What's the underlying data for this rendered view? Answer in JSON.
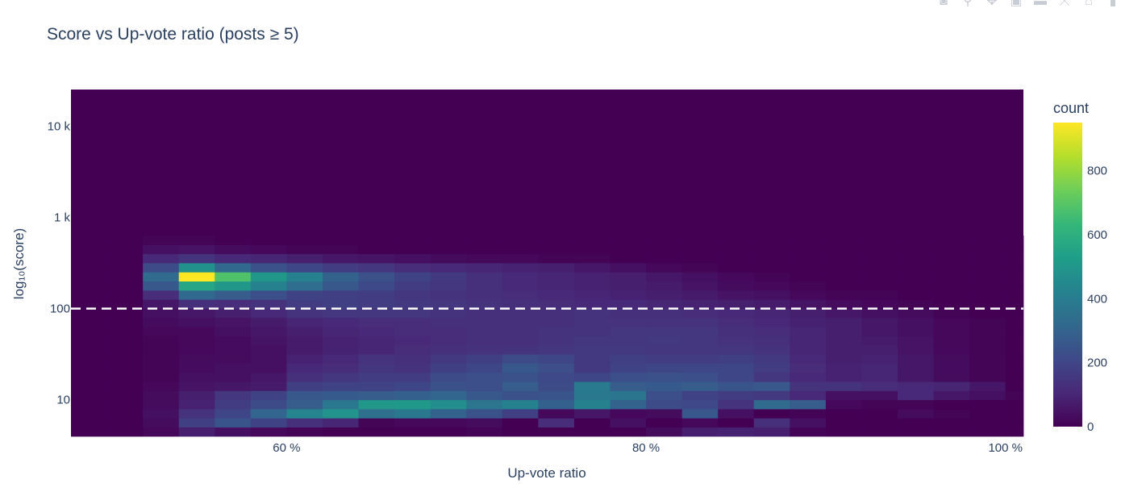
{
  "modebar": {
    "buttons": [
      {
        "icon": "camera-icon",
        "glyph": "◙"
      },
      {
        "icon": "zoom-icon",
        "glyph": "⚲"
      },
      {
        "icon": "pan-icon",
        "glyph": "✥"
      },
      {
        "icon": "zoom-in-icon",
        "glyph": "▣"
      },
      {
        "icon": "zoom-out-icon",
        "glyph": "▬"
      },
      {
        "icon": "autoscale-icon",
        "glyph": "⤧"
      },
      {
        "icon": "home-icon",
        "glyph": "⌂"
      },
      {
        "icon": "plotly-logo-icon",
        "glyph": "▮"
      }
    ]
  },
  "chart_data": {
    "type": "heatmap",
    "title": "Score vs Up-vote ratio (posts ≥ 5)",
    "xlabel": "Up-vote ratio",
    "ylabel": "log₁₀(score)",
    "x_ticks": [
      {
        "value": 0.6,
        "label": "60 %"
      },
      {
        "value": 0.8,
        "label": "80 %"
      },
      {
        "value": 1.0,
        "label": "100 %"
      }
    ],
    "y_ticks": [
      {
        "value": 10,
        "label": "10"
      },
      {
        "value": 100,
        "label": "100"
      },
      {
        "value": 1000,
        "label": "1 k"
      },
      {
        "value": 10000,
        "label": "10 k"
      }
    ],
    "xlim": [
      0.48,
      1.01
    ],
    "ylog_range": [
      0.6,
      4.4
    ],
    "y_scale": "log",
    "reference_line": {
      "y": 100,
      "style": "dashed",
      "color": "#ffffff"
    },
    "colorbar": {
      "title": "count",
      "ticks": [
        0,
        200,
        400,
        600,
        800
      ],
      "max": 950,
      "colorscale": "Viridis"
    },
    "x_bin_start": 0.48,
    "x_bin_width": 0.02,
    "y_bin_start_log": 0.6,
    "y_bin_width_log": 0.1,
    "counts": [
      [
        0,
        0,
        20,
        80,
        40,
        20,
        10,
        0,
        0,
        0,
        0,
        10,
        0,
        0,
        0,
        0,
        30,
        80,
        90,
        80,
        10,
        0,
        0,
        0,
        0,
        0,
        0
      ],
      [
        0,
        0,
        30,
        180,
        250,
        190,
        130,
        100,
        10,
        20,
        20,
        30,
        0,
        120,
        0,
        40,
        0,
        20,
        0,
        130,
        40,
        0,
        0,
        0,
        0,
        0,
        0
      ],
      [
        0,
        0,
        40,
        140,
        200,
        310,
        430,
        490,
        350,
        380,
        300,
        240,
        180,
        20,
        60,
        20,
        30,
        260,
        40,
        0,
        10,
        0,
        0,
        30,
        10,
        0,
        0
      ],
      [
        0,
        0,
        30,
        90,
        170,
        220,
        280,
        380,
        500,
        510,
        470,
        370,
        420,
        290,
        420,
        300,
        220,
        210,
        140,
        330,
        280,
        20,
        10,
        10,
        0,
        0,
        0
      ],
      [
        0,
        0,
        30,
        80,
        150,
        190,
        260,
        270,
        280,
        290,
        310,
        260,
        240,
        250,
        380,
        370,
        230,
        190,
        170,
        160,
        110,
        40,
        40,
        110,
        60,
        40,
        10
      ],
      [
        0,
        0,
        20,
        50,
        60,
        70,
        180,
        190,
        190,
        200,
        240,
        230,
        280,
        220,
        390,
        280,
        270,
        280,
        250,
        260,
        140,
        140,
        120,
        110,
        100,
        60,
        0
      ],
      [
        0,
        0,
        10,
        40,
        40,
        60,
        130,
        150,
        170,
        170,
        220,
        230,
        240,
        210,
        200,
        230,
        240,
        230,
        200,
        150,
        110,
        90,
        100,
        60,
        30,
        10,
        0
      ],
      [
        0,
        0,
        10,
        30,
        40,
        40,
        110,
        120,
        150,
        140,
        180,
        200,
        260,
        230,
        160,
        190,
        200,
        200,
        200,
        170,
        120,
        90,
        100,
        60,
        30,
        10,
        0
      ],
      [
        0,
        0,
        10,
        30,
        30,
        40,
        90,
        110,
        140,
        130,
        160,
        180,
        220,
        200,
        160,
        180,
        170,
        170,
        180,
        160,
        110,
        80,
        90,
        60,
        30,
        10,
        0
      ],
      [
        0,
        0,
        10,
        20,
        30,
        40,
        70,
        90,
        100,
        120,
        130,
        140,
        140,
        150,
        160,
        160,
        150,
        150,
        150,
        140,
        100,
        80,
        80,
        50,
        20,
        10,
        0
      ],
      [
        0,
        0,
        10,
        20,
        30,
        50,
        70,
        90,
        100,
        110,
        120,
        130,
        130,
        140,
        150,
        150,
        160,
        150,
        140,
        130,
        100,
        80,
        70,
        50,
        20,
        10,
        0
      ],
      [
        0,
        0,
        20,
        20,
        40,
        60,
        80,
        100,
        110,
        120,
        120,
        130,
        130,
        140,
        140,
        150,
        150,
        150,
        130,
        120,
        100,
        80,
        60,
        40,
        20,
        10,
        0
      ],
      [
        0,
        0,
        30,
        40,
        50,
        70,
        100,
        110,
        120,
        120,
        130,
        130,
        130,
        130,
        140,
        140,
        140,
        140,
        120,
        110,
        90,
        80,
        60,
        40,
        20,
        10,
        0
      ],
      [
        0,
        0,
        40,
        60,
        80,
        110,
        140,
        150,
        150,
        150,
        140,
        130,
        130,
        130,
        140,
        130,
        130,
        120,
        110,
        100,
        80,
        60,
        40,
        30,
        10,
        0,
        0
      ],
      [
        0,
        0,
        60,
        130,
        120,
        140,
        170,
        180,
        170,
        160,
        150,
        140,
        130,
        120,
        110,
        110,
        100,
        90,
        80,
        70,
        50,
        30,
        20,
        10,
        0,
        0,
        0
      ],
      [
        0,
        0,
        120,
        320,
        280,
        230,
        190,
        180,
        170,
        150,
        140,
        130,
        120,
        110,
        100,
        90,
        80,
        70,
        50,
        40,
        20,
        10,
        10,
        0,
        0,
        0,
        0
      ],
      [
        0,
        0,
        260,
        560,
        500,
        420,
        340,
        260,
        210,
        170,
        150,
        130,
        110,
        100,
        90,
        80,
        70,
        50,
        30,
        20,
        10,
        0,
        0,
        0,
        0,
        0,
        0
      ],
      [
        0,
        0,
        330,
        950,
        680,
        500,
        420,
        300,
        240,
        190,
        160,
        130,
        110,
        100,
        90,
        80,
        60,
        40,
        20,
        10,
        0,
        0,
        0,
        0,
        0,
        0,
        0
      ],
      [
        0,
        0,
        220,
        480,
        320,
        240,
        200,
        170,
        150,
        120,
        110,
        100,
        90,
        80,
        60,
        40,
        20,
        10,
        0,
        0,
        0,
        0,
        0,
        0,
        0,
        0,
        0
      ],
      [
        0,
        0,
        110,
        140,
        110,
        100,
        80,
        60,
        50,
        40,
        30,
        20,
        20,
        10,
        10,
        0,
        0,
        0,
        0,
        0,
        0,
        0,
        0,
        0,
        0,
        0,
        0
      ],
      [
        0,
        0,
        40,
        50,
        30,
        20,
        10,
        10,
        0,
        0,
        0,
        0,
        0,
        0,
        0,
        0,
        0,
        0,
        0,
        0,
        0,
        0,
        0,
        0,
        0,
        0,
        0
      ],
      [
        0,
        0,
        10,
        10,
        0,
        0,
        0,
        0,
        0,
        0,
        0,
        0,
        0,
        0,
        0,
        0,
        0,
        0,
        0,
        0,
        0,
        0,
        0,
        0,
        0,
        0,
        0
      ]
    ]
  }
}
